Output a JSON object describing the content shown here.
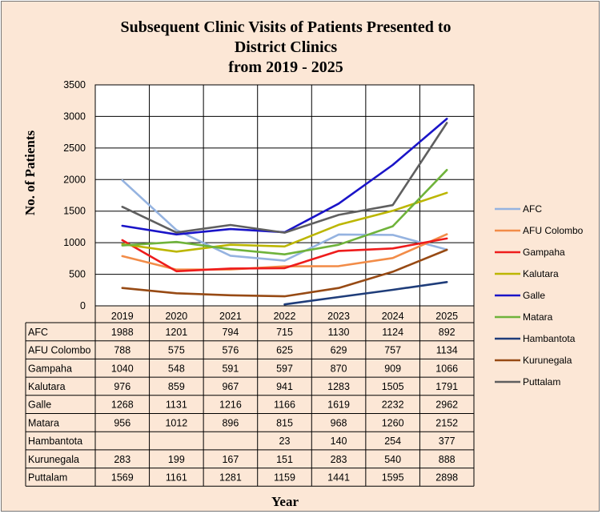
{
  "chart_data": {
    "type": "line",
    "title_lines": [
      "Subsequent Clinic Visits of Patients Presented to",
      "District Clinics",
      "from 2019 - 2025"
    ],
    "xlabel": "Year",
    "ylabel": "No. of Patients",
    "ylim": [
      0,
      3500
    ],
    "yticks": [
      "0",
      "500",
      "1000",
      "1500",
      "2000",
      "2500",
      "3000",
      "3500"
    ],
    "categories": [
      "2019",
      "2020",
      "2021",
      "2022",
      "2023",
      "2024",
      "2025"
    ],
    "grid": true,
    "legend_position": "right",
    "series": [
      {
        "name": "AFC",
        "color": "#95b3e0",
        "values": [
          1988,
          1201,
          794,
          715,
          1130,
          1124,
          892
        ]
      },
      {
        "name": "AFU Colombo",
        "color": "#f28c48",
        "values": [
          788,
          575,
          576,
          625,
          629,
          757,
          1134
        ]
      },
      {
        "name": "Gampaha",
        "color": "#ee1c1c",
        "values": [
          1040,
          548,
          591,
          597,
          870,
          909,
          1066
        ]
      },
      {
        "name": "Kalutara",
        "color": "#bcb600",
        "values": [
          976,
          859,
          967,
          941,
          1283,
          1505,
          1791
        ]
      },
      {
        "name": "Galle",
        "color": "#1a14c8",
        "values": [
          1268,
          1131,
          1216,
          1166,
          1619,
          2232,
          2962
        ]
      },
      {
        "name": "Matara",
        "color": "#6fb33b",
        "values": [
          956,
          1012,
          896,
          815,
          968,
          1260,
          2152
        ]
      },
      {
        "name": "Hambantota",
        "color": "#1f3d7a",
        "values": [
          null,
          null,
          null,
          23,
          140,
          254,
          377
        ]
      },
      {
        "name": "Kurunegala",
        "color": "#974a14",
        "values": [
          283,
          199,
          167,
          151,
          283,
          540,
          888
        ]
      },
      {
        "name": "Puttalam",
        "color": "#5f5f5f",
        "values": [
          1569,
          1161,
          1281,
          1159,
          1441,
          1595,
          2898
        ]
      }
    ]
  }
}
